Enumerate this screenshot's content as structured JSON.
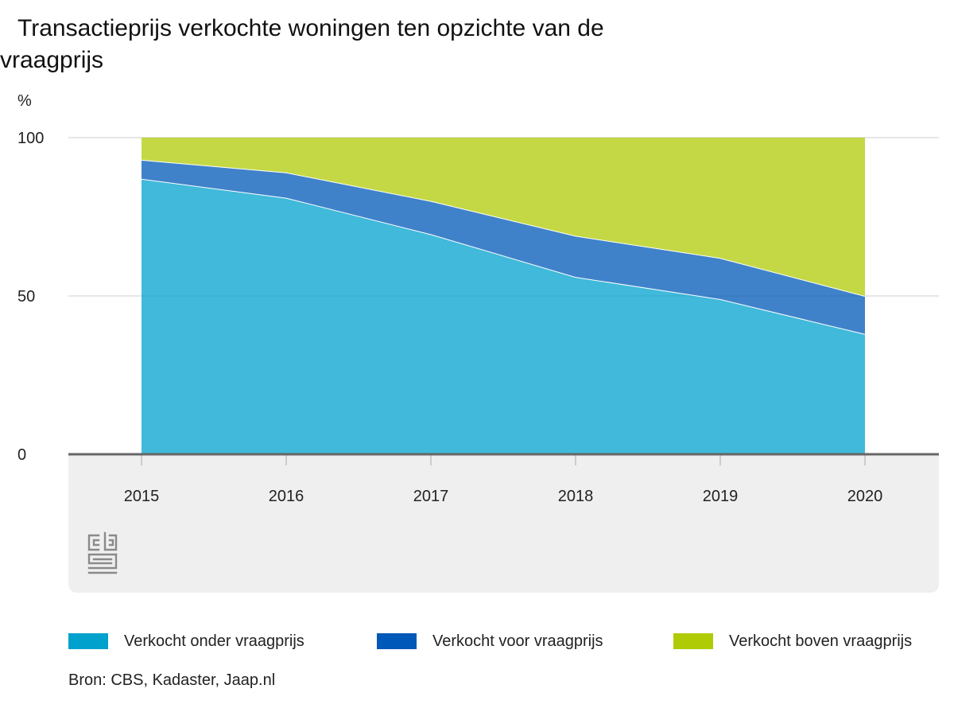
{
  "chart_data": {
    "type": "area",
    "stacked": true,
    "title": "Transactieprijs verkochte woningen ten opzichte van de vraagprijs",
    "title_lines": [
      "Transactieprijs verkochte woningen ten opzichte van de",
      "vraagprijs"
    ],
    "ylabel": "%",
    "xlabel": "",
    "categories": [
      "2015",
      "2016",
      "2017",
      "2018",
      "2019",
      "2020"
    ],
    "ylim": [
      0,
      100
    ],
    "yticks": [
      0,
      50,
      100
    ],
    "grid": true,
    "legend_position": "bottom",
    "series": [
      {
        "name": "Verkocht onder vraagprijs",
        "color": "#00a1cd",
        "values": [
          87,
          81,
          69.5,
          56,
          49,
          38
        ]
      },
      {
        "name": "Verkocht voor vraagprijs",
        "color": "#0058b8",
        "values": [
          6,
          8,
          10.5,
          13,
          13,
          12
        ]
      },
      {
        "name": "Verkocht boven vraagprijs",
        "color": "#afcb05",
        "values": [
          7,
          11,
          20,
          31,
          38,
          50
        ]
      }
    ]
  },
  "source": "Bron: CBS, Kadaster, Jaap.nl",
  "colors": {
    "plot_background": "#efefef",
    "axis": "#666666",
    "gridline": "#cccccc",
    "logo": "#8a8a8a"
  },
  "logo_icon": "cbs-logo-icon"
}
